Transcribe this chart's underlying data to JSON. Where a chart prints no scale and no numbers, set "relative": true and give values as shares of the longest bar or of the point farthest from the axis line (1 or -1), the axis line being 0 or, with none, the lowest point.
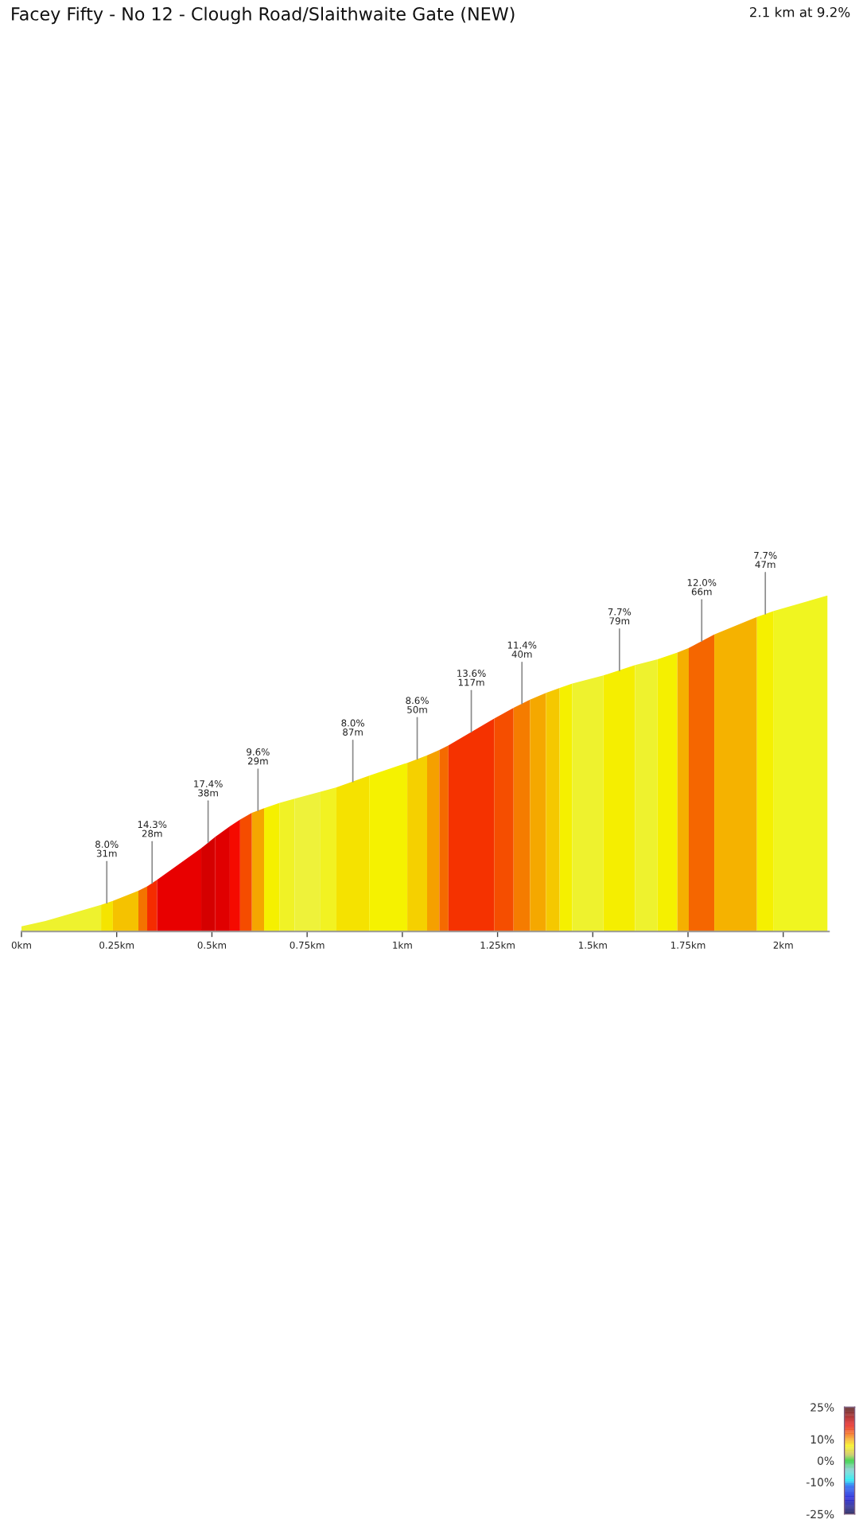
{
  "chart_data": {
    "type": "area",
    "title": "Facey Fifty - No 12 - Clough Road/Slaithwaite Gate (NEW)",
    "subtitle": "2.1 km at 9.2%",
    "relative": true,
    "xlim": [
      0,
      2.12
    ],
    "xticks": [
      {
        "value": 0,
        "label": "0km"
      },
      {
        "value": 0.25,
        "label": "0.25km"
      },
      {
        "value": 0.5,
        "label": "0.5km"
      },
      {
        "value": 0.75,
        "label": "0.75km"
      },
      {
        "value": 1,
        "label": "1km"
      },
      {
        "value": 1.25,
        "label": "1.25km"
      },
      {
        "value": 1.5,
        "label": "1.5km"
      },
      {
        "value": 1.75,
        "label": "1.75km"
      },
      {
        "value": 2,
        "label": "2km"
      }
    ],
    "series": [
      {
        "color": "#eef22e",
        "x": [
          0,
          0.063,
          0.209
        ],
        "values": [
          0.015,
          0.031,
          0.079
        ]
      },
      {
        "color": "#f5e400",
        "x": [
          0.209,
          0.24
        ],
        "values": [
          0.079,
          0.091
        ]
      },
      {
        "color": "#f5c200",
        "x": [
          0.24,
          0.307
        ],
        "values": [
          0.091,
          0.121
        ]
      },
      {
        "color": "#f47300",
        "x": [
          0.307,
          0.33
        ],
        "values": [
          0.121,
          0.134
        ]
      },
      {
        "color": "#f52c00",
        "x": [
          0.33,
          0.356
        ],
        "values": [
          0.134,
          0.154
        ]
      },
      {
        "color": "#e80000",
        "x": [
          0.356,
          0.472
        ],
        "values": [
          0.154,
          0.248
        ]
      },
      {
        "color": "#d50000",
        "x": [
          0.472,
          0.508
        ],
        "values": [
          0.248,
          0.281
        ]
      },
      {
        "color": "#e00000",
        "x": [
          0.508,
          0.547
        ],
        "values": [
          0.281,
          0.313
        ]
      },
      {
        "color": "#f50a00",
        "x": [
          0.547,
          0.574
        ],
        "values": [
          0.313,
          0.333
        ]
      },
      {
        "color": "#f54c00",
        "x": [
          0.574,
          0.605
        ],
        "values": [
          0.333,
          0.353
        ]
      },
      {
        "color": "#f5a600",
        "x": [
          0.605,
          0.637
        ],
        "values": [
          0.353,
          0.367
        ]
      },
      {
        "color": "#f5f000",
        "x": [
          0.637,
          0.678
        ],
        "values": [
          0.367,
          0.383
        ]
      },
      {
        "color": "#f0f226",
        "x": [
          0.678,
          0.717
        ],
        "values": [
          0.383,
          0.395
        ]
      },
      {
        "color": "#eef23a",
        "x": [
          0.717,
          0.785
        ],
        "values": [
          0.395,
          0.416
        ]
      },
      {
        "color": "#f2f222",
        "x": [
          0.785,
          0.827
        ],
        "values": [
          0.416,
          0.429
        ]
      },
      {
        "color": "#f5e200",
        "x": [
          0.827,
          0.913
        ],
        "values": [
          0.429,
          0.464
        ]
      },
      {
        "color": "#f5f200",
        "x": [
          0.913,
          1.013
        ],
        "values": [
          0.464,
          0.502
        ]
      },
      {
        "color": "#f5d000",
        "x": [
          1.013,
          1.065
        ],
        "values": [
          0.502,
          0.524
        ]
      },
      {
        "color": "#f5a000",
        "x": [
          1.065,
          1.097
        ],
        "values": [
          0.524,
          0.54
        ]
      },
      {
        "color": "#f56a00",
        "x": [
          1.097,
          1.121
        ],
        "values": [
          0.54,
          0.554
        ]
      },
      {
        "color": "#f53200",
        "x": [
          1.121,
          1.241
        ],
        "values": [
          0.554,
          0.634
        ]
      },
      {
        "color": "#f54e00",
        "x": [
          1.241,
          1.292
        ],
        "values": [
          0.634,
          0.666
        ]
      },
      {
        "color": "#f57c00",
        "x": [
          1.292,
          1.335
        ],
        "values": [
          0.666,
          0.69
        ]
      },
      {
        "color": "#f5a800",
        "x": [
          1.335,
          1.377
        ],
        "values": [
          0.69,
          0.71
        ]
      },
      {
        "color": "#f5c800",
        "x": [
          1.377,
          1.413
        ],
        "values": [
          0.71,
          0.725
        ]
      },
      {
        "color": "#f5f000",
        "x": [
          1.413,
          1.446
        ],
        "values": [
          0.725,
          0.738
        ]
      },
      {
        "color": "#eef22e",
        "x": [
          1.446,
          1.528
        ],
        "values": [
          0.738,
          0.762
        ]
      },
      {
        "color": "#f5ee00",
        "x": [
          1.528,
          1.611
        ],
        "values": [
          0.762,
          0.793
        ]
      },
      {
        "color": "#eef22e",
        "x": [
          1.611,
          1.67
        ],
        "values": [
          0.793,
          0.81
        ]
      },
      {
        "color": "#f5f000",
        "x": [
          1.67,
          1.722
        ],
        "values": [
          0.81,
          0.83
        ]
      },
      {
        "color": "#f5b000",
        "x": [
          1.722,
          1.752
        ],
        "values": [
          0.83,
          0.844
        ]
      },
      {
        "color": "#f56600",
        "x": [
          1.752,
          1.819
        ],
        "values": [
          0.844,
          0.884
        ]
      },
      {
        "color": "#f5b200",
        "x": [
          1.819,
          1.931
        ],
        "values": [
          0.884,
          0.936
        ]
      },
      {
        "color": "#f5f000",
        "x": [
          1.931,
          1.975
        ],
        "values": [
          0.936,
          0.954
        ]
      },
      {
        "color": "#f0f520",
        "x": [
          1.975,
          2.116
        ],
        "values": [
          0.954,
          1
        ]
      }
    ],
    "annotations": [
      {
        "text": "8.0%\n31m",
        "x": 0.224,
        "y": 0.085
      },
      {
        "text": "14.3%\n28m",
        "x": 0.343,
        "y": 0.144
      },
      {
        "text": "17.4%\n38m",
        "x": 0.49,
        "y": 0.265
      },
      {
        "text": "9.6%\n29m",
        "x": 0.621,
        "y": 0.36
      },
      {
        "text": "8.0%\n87m",
        "x": 0.87,
        "y": 0.446
      },
      {
        "text": "8.6%\n50m",
        "x": 1.039,
        "y": 0.513
      },
      {
        "text": "13.6%\n117m",
        "x": 1.181,
        "y": 0.594
      },
      {
        "text": "11.4%\n40m",
        "x": 1.314,
        "y": 0.678
      },
      {
        "text": "7.7%\n79m",
        "x": 1.57,
        "y": 0.777
      },
      {
        "text": "12.0%\n66m",
        "x": 1.786,
        "y": 0.864
      },
      {
        "text": "7.7%\n47m",
        "x": 1.953,
        "y": 0.945
      }
    ],
    "clim": [
      -25,
      25
    ],
    "cticks": [
      {
        "value": 25,
        "label": "25%"
      },
      {
        "value": 10,
        "label": "10%"
      },
      {
        "value": 0,
        "label": "0%"
      },
      {
        "value": -10,
        "label": "-10%"
      },
      {
        "value": -25,
        "label": "-25%"
      }
    ]
  }
}
